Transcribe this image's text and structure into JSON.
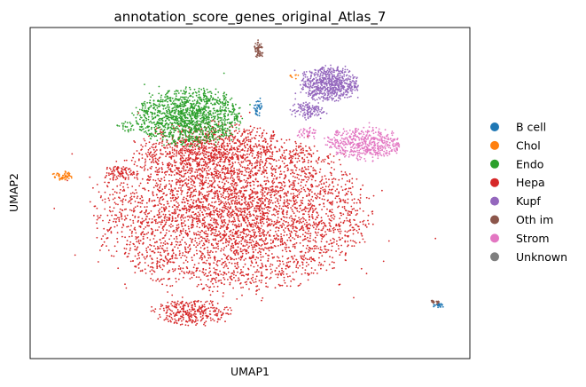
{
  "chart_data": {
    "type": "scatter",
    "title": "annotation_score_genes_original_Atlas_7",
    "xlabel": "UMAP1",
    "ylabel": "UMAP2",
    "grid": false,
    "legend_placement": "right",
    "legend": [
      {
        "name": "B cell",
        "color": "#1f77b4"
      },
      {
        "name": "Chol",
        "color": "#ff7f0e"
      },
      {
        "name": "Endo",
        "color": "#2ca02c"
      },
      {
        "name": "Hepa",
        "color": "#d62728"
      },
      {
        "name": "Kupf",
        "color": "#9467bd"
      },
      {
        "name": "Oth im",
        "color": "#8c564b"
      },
      {
        "name": "Strom",
        "color": "#e377c2"
      },
      {
        "name": "Unknown",
        "color": "#7f7f7f"
      }
    ],
    "xlim": [
      0,
      100
    ],
    "ylim": [
      0,
      100
    ],
    "clusters": [
      {
        "series": "Hepa",
        "cx": 46,
        "cy": 44,
        "rx": 28,
        "ry": 22,
        "n": 4200
      },
      {
        "series": "Hepa",
        "cx": 41,
        "cy": 63,
        "rx": 15,
        "ry": 8,
        "n": 700
      },
      {
        "series": "Hepa",
        "cx": 37,
        "cy": 14,
        "rx": 8,
        "ry": 3.5,
        "n": 300
      },
      {
        "series": "Hepa",
        "cx": 20,
        "cy": 56,
        "rx": 3.5,
        "ry": 2,
        "n": 70
      },
      {
        "series": "Hepa",
        "cx": 61,
        "cy": 62,
        "rx": 3,
        "ry": 2,
        "n": 40
      },
      {
        "series": "Endo",
        "cx": 36,
        "cy": 73,
        "rx": 11,
        "ry": 8,
        "n": 1300
      },
      {
        "series": "Endo",
        "cx": 22,
        "cy": 70,
        "rx": 2.5,
        "ry": 1.5,
        "n": 25
      },
      {
        "series": "Chol",
        "cx": 7.5,
        "cy": 55,
        "rx": 2.3,
        "ry": 1.4,
        "n": 55
      },
      {
        "series": "Kupf",
        "cx": 68,
        "cy": 83,
        "rx": 6,
        "ry": 5,
        "n": 650
      },
      {
        "series": "Kupf",
        "cx": 63,
        "cy": 75,
        "rx": 3.5,
        "ry": 2.5,
        "n": 120
      },
      {
        "series": "Strom",
        "cx": 76,
        "cy": 65,
        "rx": 8,
        "ry": 4.5,
        "n": 500
      },
      {
        "series": "Strom",
        "cx": 63,
        "cy": 68,
        "rx": 2,
        "ry": 2,
        "n": 40
      },
      {
        "series": "B cell",
        "cx": 52,
        "cy": 76,
        "rx": 1,
        "ry": 2.5,
        "n": 35
      },
      {
        "series": "B cell",
        "cx": 93,
        "cy": 16,
        "rx": 1.5,
        "ry": 0.6,
        "n": 25
      },
      {
        "series": "Oth im",
        "cx": 52,
        "cy": 93,
        "rx": 1,
        "ry": 2.5,
        "n": 60
      },
      {
        "series": "Oth im",
        "cx": 92,
        "cy": 17,
        "rx": 1.5,
        "ry": 0.6,
        "n": 20
      },
      {
        "series": "Chol",
        "cx": 60,
        "cy": 85,
        "rx": 2,
        "ry": 1,
        "n": 8
      }
    ]
  }
}
